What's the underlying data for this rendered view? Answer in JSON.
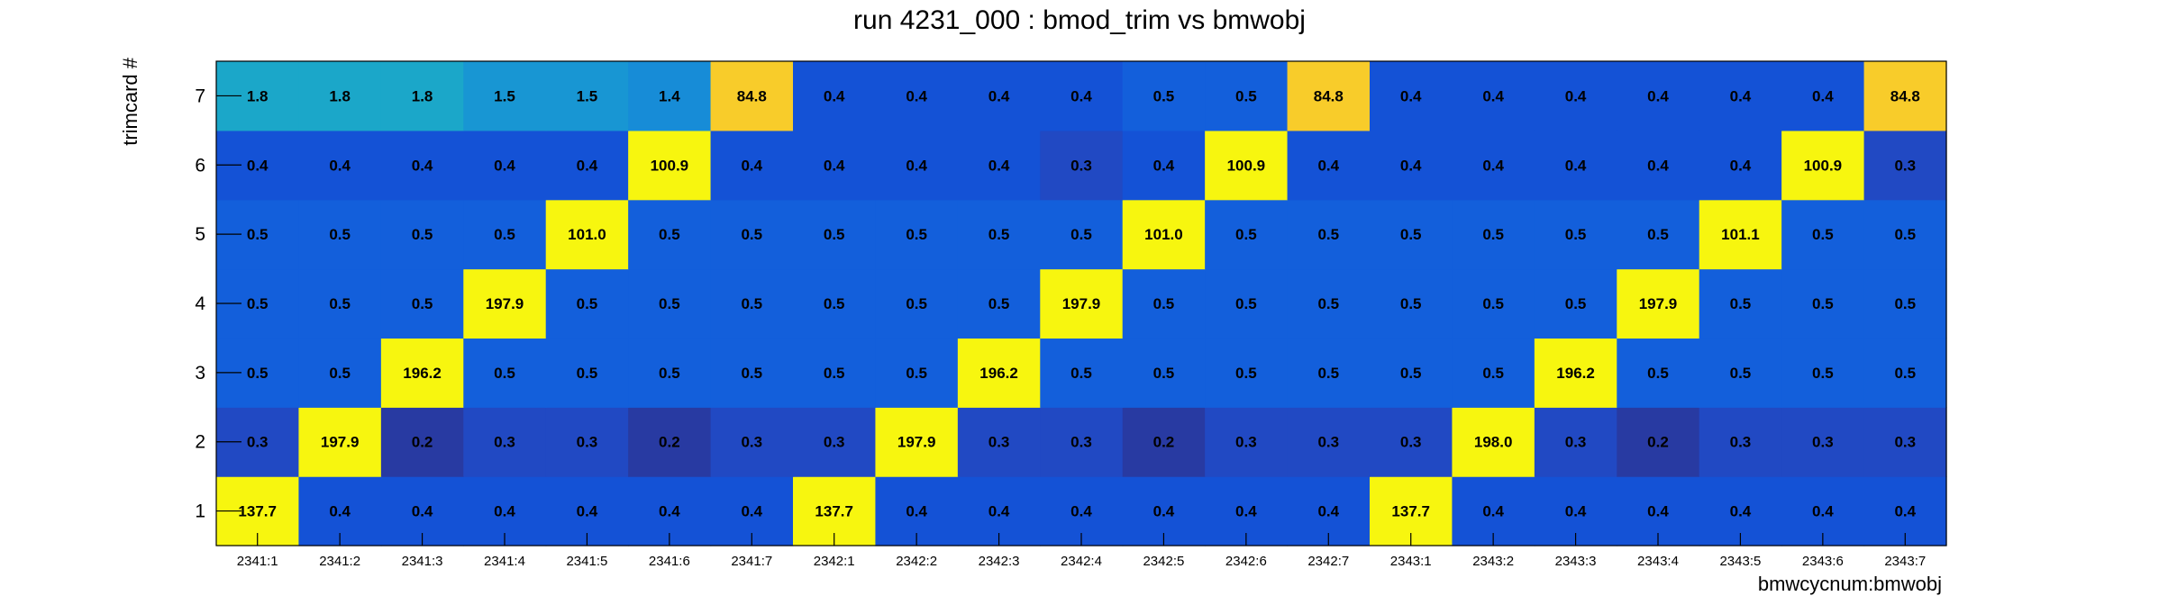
{
  "chart_data": {
    "type": "heatmap",
    "title": "run 4231_000 : bmod_trim vs bmwobj",
    "xlabel": "bmwcycnum:bmwobj",
    "ylabel": "trimcard #",
    "x_categories": [
      "2341:1",
      "2341:2",
      "2341:3",
      "2341:4",
      "2341:5",
      "2341:6",
      "2341:7",
      "2342:1",
      "2342:2",
      "2342:3",
      "2342:4",
      "2342:5",
      "2342:6",
      "2342:7",
      "2343:1",
      "2343:2",
      "2343:3",
      "2343:4",
      "2343:5",
      "2343:6",
      "2343:7"
    ],
    "y_categories": [
      "1",
      "2",
      "3",
      "4",
      "5",
      "6",
      "7"
    ],
    "values": [
      [
        137.7,
        0.4,
        0.4,
        0.4,
        0.4,
        0.4,
        0.4,
        137.7,
        0.4,
        0.4,
        0.4,
        0.4,
        0.4,
        0.4,
        137.7,
        0.4,
        0.4,
        0.4,
        0.4,
        0.4,
        0.4
      ],
      [
        0.3,
        197.9,
        0.2,
        0.3,
        0.3,
        0.2,
        0.3,
        0.3,
        197.9,
        0.3,
        0.3,
        0.2,
        0.3,
        0.3,
        0.3,
        198.0,
        0.3,
        0.2,
        0.3,
        0.3,
        0.3
      ],
      [
        0.5,
        0.5,
        196.2,
        0.5,
        0.5,
        0.5,
        0.5,
        0.5,
        0.5,
        196.2,
        0.5,
        0.5,
        0.5,
        0.5,
        0.5,
        0.5,
        196.2,
        0.5,
        0.5,
        0.5,
        0.5
      ],
      [
        0.5,
        0.5,
        0.5,
        197.9,
        0.5,
        0.5,
        0.5,
        0.5,
        0.5,
        0.5,
        197.9,
        0.5,
        0.5,
        0.5,
        0.5,
        0.5,
        0.5,
        197.9,
        0.5,
        0.5,
        0.5
      ],
      [
        0.5,
        0.5,
        0.5,
        0.5,
        101.0,
        0.5,
        0.5,
        0.5,
        0.5,
        0.5,
        0.5,
        101.0,
        0.5,
        0.5,
        0.5,
        0.5,
        0.5,
        0.5,
        101.1,
        0.5,
        0.5
      ],
      [
        0.4,
        0.4,
        0.4,
        0.4,
        0.4,
        100.9,
        0.4,
        0.4,
        0.4,
        0.4,
        0.3,
        0.4,
        100.9,
        0.4,
        0.4,
        0.4,
        0.4,
        0.4,
        0.4,
        100.9,
        0.3
      ],
      [
        1.8,
        1.8,
        1.8,
        1.5,
        1.5,
        1.4,
        84.8,
        0.4,
        0.4,
        0.4,
        0.4,
        0.5,
        0.5,
        84.8,
        0.4,
        0.4,
        0.4,
        0.4,
        0.4,
        0.4,
        84.8
      ]
    ],
    "colors": {
      "high": "#f7f60f",
      "mid_high": "#f8cc2a",
      "mid": "#1ba7c9",
      "cyan2": "#1896d3",
      "cyan3": "#178cd7",
      "blue_05": "#135fdb",
      "blue_04": "#1452d6",
      "blue_03": "#2149c3",
      "blue_02": "#283aa2"
    },
    "grid": false,
    "legend": "none"
  }
}
